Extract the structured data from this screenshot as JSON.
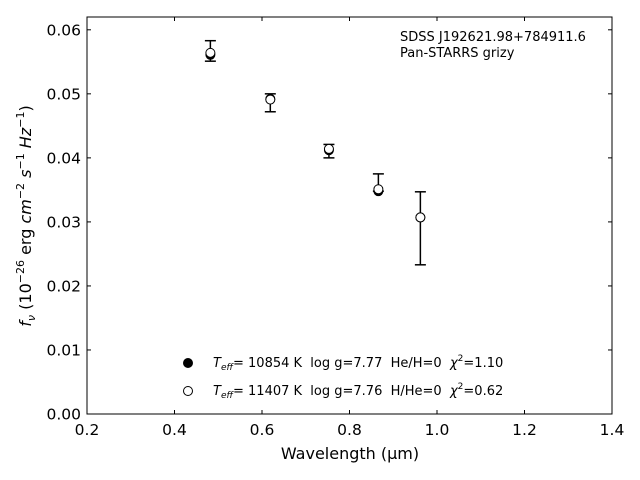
{
  "chart_data": {
    "type": "scatter",
    "xlabel": "Wavelength (μm)",
    "ylabel": "fν (10⁻²⁶ erg cm⁻² s⁻¹ Hz⁻¹)",
    "xlim": [
      0.2,
      1.4
    ],
    "ylim": [
      0.0,
      0.062
    ],
    "xticks": [
      "0.2",
      "0.4",
      "0.6",
      "0.8",
      "1.0",
      "1.2",
      "1.4"
    ],
    "yticks": [
      "0.00",
      "0.01",
      "0.02",
      "0.03",
      "0.04",
      "0.05",
      "0.06"
    ],
    "annotation": [
      "SDSS J192621.98+784911.6",
      "Pan-STARRS grizy"
    ],
    "observed": {
      "x": [
        0.482,
        0.619,
        0.753,
        0.866,
        0.962
      ],
      "y_lower": [
        0.0551,
        0.0472,
        0.04,
        0.0348,
        0.0233
      ],
      "y_upper": [
        0.0583,
        0.05,
        0.0421,
        0.0375,
        0.0347
      ]
    },
    "series": [
      {
        "name": "T_eff= 10854 K  log g=7.77  He/H=0  χ²=1.10",
        "marker": "filled-circle",
        "x": [
          0.482,
          0.619,
          0.753,
          0.866,
          0.962
        ],
        "y": [
          0.0561,
          0.0492,
          0.0412,
          0.0348,
          0.0307
        ]
      },
      {
        "name": "T_eff= 11407 K  log g=7.76  H/He=0  χ²=0.62",
        "marker": "open-circle",
        "x": [
          0.482,
          0.619,
          0.753,
          0.866,
          0.962
        ],
        "y": [
          0.0564,
          0.0491,
          0.0414,
          0.0351,
          0.0307
        ]
      }
    ],
    "legend": {
      "placement": "lower-center",
      "entries": [
        {
          "teff_label": "T",
          "teff_sub": "eff",
          "text": "= 10854 K  log g=7.77  He/H=0  ",
          "chi": "χ",
          "chi_sup": "2",
          "chi_val": "=1.10"
        },
        {
          "teff_label": "T",
          "teff_sub": "eff",
          "text": "= 11407 K  log g=7.76  H/He=0  ",
          "chi": "χ",
          "chi_sup": "2",
          "chi_val": "=0.62"
        }
      ]
    },
    "grid": false
  }
}
